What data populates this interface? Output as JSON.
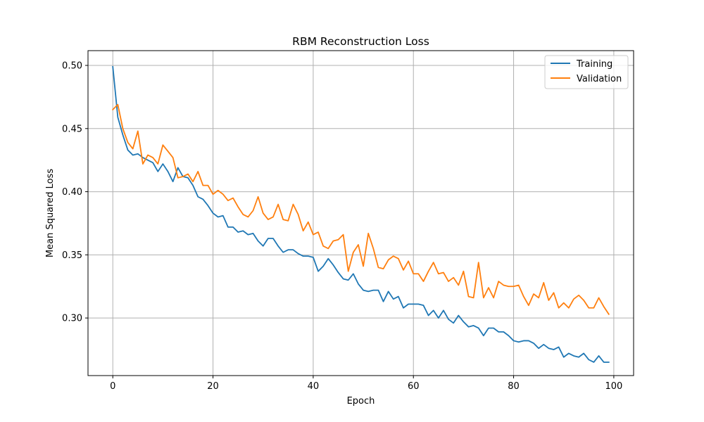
{
  "chart_data": {
    "type": "line",
    "title": "RBM Reconstruction Loss",
    "xlabel": "Epoch",
    "ylabel": "Mean Squared Loss",
    "xlim": [
      -4.95,
      103.95
    ],
    "ylim": [
      0.2544,
      0.5117
    ],
    "xticks": [
      0,
      20,
      40,
      60,
      80,
      100
    ],
    "yticks": [
      0.3,
      0.35,
      0.4,
      0.45,
      0.5
    ],
    "xtick_labels": [
      "0",
      "20",
      "40",
      "60",
      "80",
      "100"
    ],
    "ytick_labels": [
      "0.30",
      "0.35",
      "0.40",
      "0.45",
      "0.50"
    ],
    "grid": true,
    "legend_position": "top-right",
    "series": [
      {
        "name": "Training",
        "color": "#1f77b4",
        "x": [
          0,
          1,
          2,
          3,
          4,
          5,
          6,
          7,
          8,
          9,
          10,
          11,
          12,
          13,
          14,
          15,
          16,
          17,
          18,
          19,
          20,
          21,
          22,
          23,
          24,
          25,
          26,
          27,
          28,
          29,
          30,
          31,
          32,
          33,
          34,
          35,
          36,
          37,
          38,
          39,
          40,
          41,
          42,
          43,
          44,
          45,
          46,
          47,
          48,
          49,
          50,
          51,
          52,
          53,
          54,
          55,
          56,
          57,
          58,
          59,
          60,
          61,
          62,
          63,
          64,
          65,
          66,
          67,
          68,
          69,
          70,
          71,
          72,
          73,
          74,
          75,
          76,
          77,
          78,
          79,
          80,
          81,
          82,
          83,
          84,
          85,
          86,
          87,
          88,
          89,
          90,
          91,
          92,
          93,
          94,
          95,
          96,
          97,
          98,
          99
        ],
        "values": [
          0.499,
          0.459,
          0.445,
          0.433,
          0.429,
          0.43,
          0.427,
          0.425,
          0.423,
          0.416,
          0.422,
          0.416,
          0.408,
          0.419,
          0.412,
          0.411,
          0.405,
          0.396,
          0.394,
          0.389,
          0.383,
          0.38,
          0.381,
          0.372,
          0.372,
          0.368,
          0.369,
          0.366,
          0.367,
          0.361,
          0.357,
          0.363,
          0.363,
          0.357,
          0.352,
          0.354,
          0.354,
          0.351,
          0.349,
          0.349,
          0.348,
          0.337,
          0.341,
          0.347,
          0.342,
          0.336,
          0.331,
          0.33,
          0.335,
          0.327,
          0.322,
          0.321,
          0.322,
          0.322,
          0.313,
          0.321,
          0.315,
          0.317,
          0.308,
          0.311,
          0.311,
          0.311,
          0.31,
          0.302,
          0.306,
          0.3,
          0.306,
          0.299,
          0.296,
          0.302,
          0.297,
          0.293,
          0.294,
          0.292,
          0.286,
          0.292,
          0.292,
          0.289,
          0.289,
          0.286,
          0.282,
          0.281,
          0.282,
          0.282,
          0.28,
          0.276,
          0.279,
          0.276,
          0.275,
          0.277,
          0.269,
          0.272,
          0.27,
          0.269,
          0.272,
          0.267,
          0.265,
          0.27,
          0.265,
          0.265
        ]
      },
      {
        "name": "Validation",
        "color": "#ff7f0e",
        "x": [
          0,
          1,
          2,
          3,
          4,
          5,
          6,
          7,
          8,
          9,
          10,
          11,
          12,
          13,
          14,
          15,
          16,
          17,
          18,
          19,
          20,
          21,
          22,
          23,
          24,
          25,
          26,
          27,
          28,
          29,
          30,
          31,
          32,
          33,
          34,
          35,
          36,
          37,
          38,
          39,
          40,
          41,
          42,
          43,
          44,
          45,
          46,
          47,
          48,
          49,
          50,
          51,
          52,
          53,
          54,
          55,
          56,
          57,
          58,
          59,
          60,
          61,
          62,
          63,
          64,
          65,
          66,
          67,
          68,
          69,
          70,
          71,
          72,
          73,
          74,
          75,
          76,
          77,
          78,
          79,
          80,
          81,
          82,
          83,
          84,
          85,
          86,
          87,
          88,
          89,
          90,
          91,
          92,
          93,
          94,
          95,
          96,
          97,
          98,
          99
        ],
        "values": [
          0.465,
          0.469,
          0.45,
          0.439,
          0.434,
          0.448,
          0.422,
          0.429,
          0.427,
          0.422,
          0.437,
          0.432,
          0.427,
          0.411,
          0.412,
          0.414,
          0.408,
          0.416,
          0.405,
          0.405,
          0.398,
          0.401,
          0.398,
          0.393,
          0.395,
          0.388,
          0.382,
          0.38,
          0.385,
          0.396,
          0.383,
          0.378,
          0.38,
          0.39,
          0.378,
          0.377,
          0.39,
          0.382,
          0.369,
          0.376,
          0.366,
          0.368,
          0.357,
          0.355,
          0.361,
          0.362,
          0.366,
          0.337,
          0.352,
          0.358,
          0.341,
          0.367,
          0.355,
          0.34,
          0.339,
          0.346,
          0.349,
          0.347,
          0.338,
          0.345,
          0.335,
          0.335,
          0.329,
          0.337,
          0.344,
          0.335,
          0.336,
          0.329,
          0.332,
          0.326,
          0.337,
          0.317,
          0.316,
          0.344,
          0.316,
          0.324,
          0.316,
          0.329,
          0.326,
          0.325,
          0.325,
          0.326,
          0.317,
          0.31,
          0.319,
          0.316,
          0.328,
          0.314,
          0.32,
          0.308,
          0.312,
          0.308,
          0.315,
          0.318,
          0.314,
          0.308,
          0.308,
          0.316,
          0.309,
          0.303
        ]
      }
    ]
  }
}
